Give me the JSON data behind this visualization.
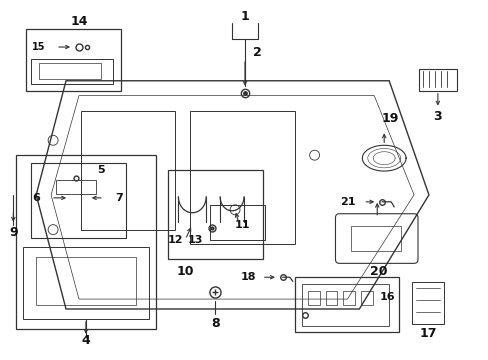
{
  "bg_color": "#ffffff",
  "line_color": "#333333"
}
